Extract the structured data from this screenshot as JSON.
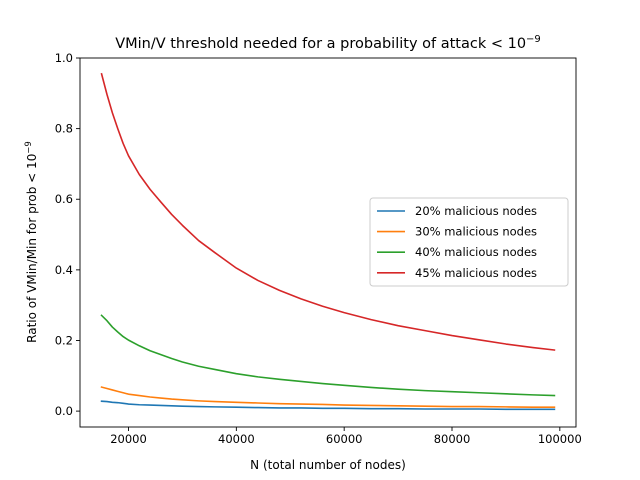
{
  "chart_data": {
    "type": "line",
    "title": "VMin/V threshold needed for a probability of attack < 10",
    "title_superscript": "−9",
    "xlabel": "N (total number of nodes)",
    "ylabel": "Ratio of VMin/Min for prob < 10",
    "ylabel_superscript": "−9",
    "xlim": [
      11000,
      103000
    ],
    "ylim": [
      -0.045,
      1.0
    ],
    "xticks": [
      20000,
      40000,
      60000,
      80000,
      100000
    ],
    "xtick_labels": [
      "20000",
      "40000",
      "60000",
      "80000",
      "100000"
    ],
    "yticks": [
      0.0,
      0.2,
      0.4,
      0.6,
      0.8,
      1.0
    ],
    "ytick_labels": [
      "0.0",
      "0.2",
      "0.4",
      "0.6",
      "0.8",
      "1.0"
    ],
    "grid": false,
    "legend_position": "center-right",
    "x": [
      15000,
      16000,
      17000,
      18000,
      19000,
      20000,
      22000,
      24000,
      26000,
      28000,
      30000,
      33000,
      36000,
      40000,
      44000,
      48000,
      52000,
      56000,
      60000,
      65000,
      70000,
      75000,
      80000,
      85000,
      90000,
      95000,
      99000
    ],
    "series": [
      {
        "name": "20% malicious nodes",
        "color": "#1f77b4",
        "values": [
          0.028,
          0.027,
          0.025,
          0.024,
          0.022,
          0.02,
          0.018,
          0.017,
          0.016,
          0.015,
          0.014,
          0.013,
          0.012,
          0.011,
          0.01,
          0.009,
          0.009,
          0.008,
          0.008,
          0.007,
          0.007,
          0.006,
          0.006,
          0.006,
          0.005,
          0.005,
          0.005
        ]
      },
      {
        "name": "30% malicious nodes",
        "color": "#ff7f0e",
        "values": [
          0.068,
          0.064,
          0.06,
          0.056,
          0.052,
          0.048,
          0.044,
          0.04,
          0.037,
          0.034,
          0.032,
          0.029,
          0.027,
          0.025,
          0.023,
          0.021,
          0.02,
          0.019,
          0.017,
          0.016,
          0.015,
          0.014,
          0.013,
          0.013,
          0.012,
          0.011,
          0.011
        ]
      },
      {
        "name": "40% malicious nodes",
        "color": "#2ca02c",
        "values": [
          0.271,
          0.256,
          0.238,
          0.224,
          0.211,
          0.201,
          0.185,
          0.171,
          0.16,
          0.149,
          0.139,
          0.127,
          0.118,
          0.106,
          0.097,
          0.09,
          0.084,
          0.078,
          0.073,
          0.067,
          0.062,
          0.058,
          0.055,
          0.052,
          0.049,
          0.046,
          0.044
        ]
      },
      {
        "name": "45% malicious nodes",
        "color": "#d62728",
        "values": [
          0.955,
          0.897,
          0.845,
          0.8,
          0.758,
          0.723,
          0.67,
          0.628,
          0.592,
          0.557,
          0.526,
          0.483,
          0.449,
          0.405,
          0.37,
          0.342,
          0.318,
          0.297,
          0.279,
          0.259,
          0.242,
          0.228,
          0.214,
          0.202,
          0.19,
          0.18,
          0.173
        ]
      }
    ]
  }
}
